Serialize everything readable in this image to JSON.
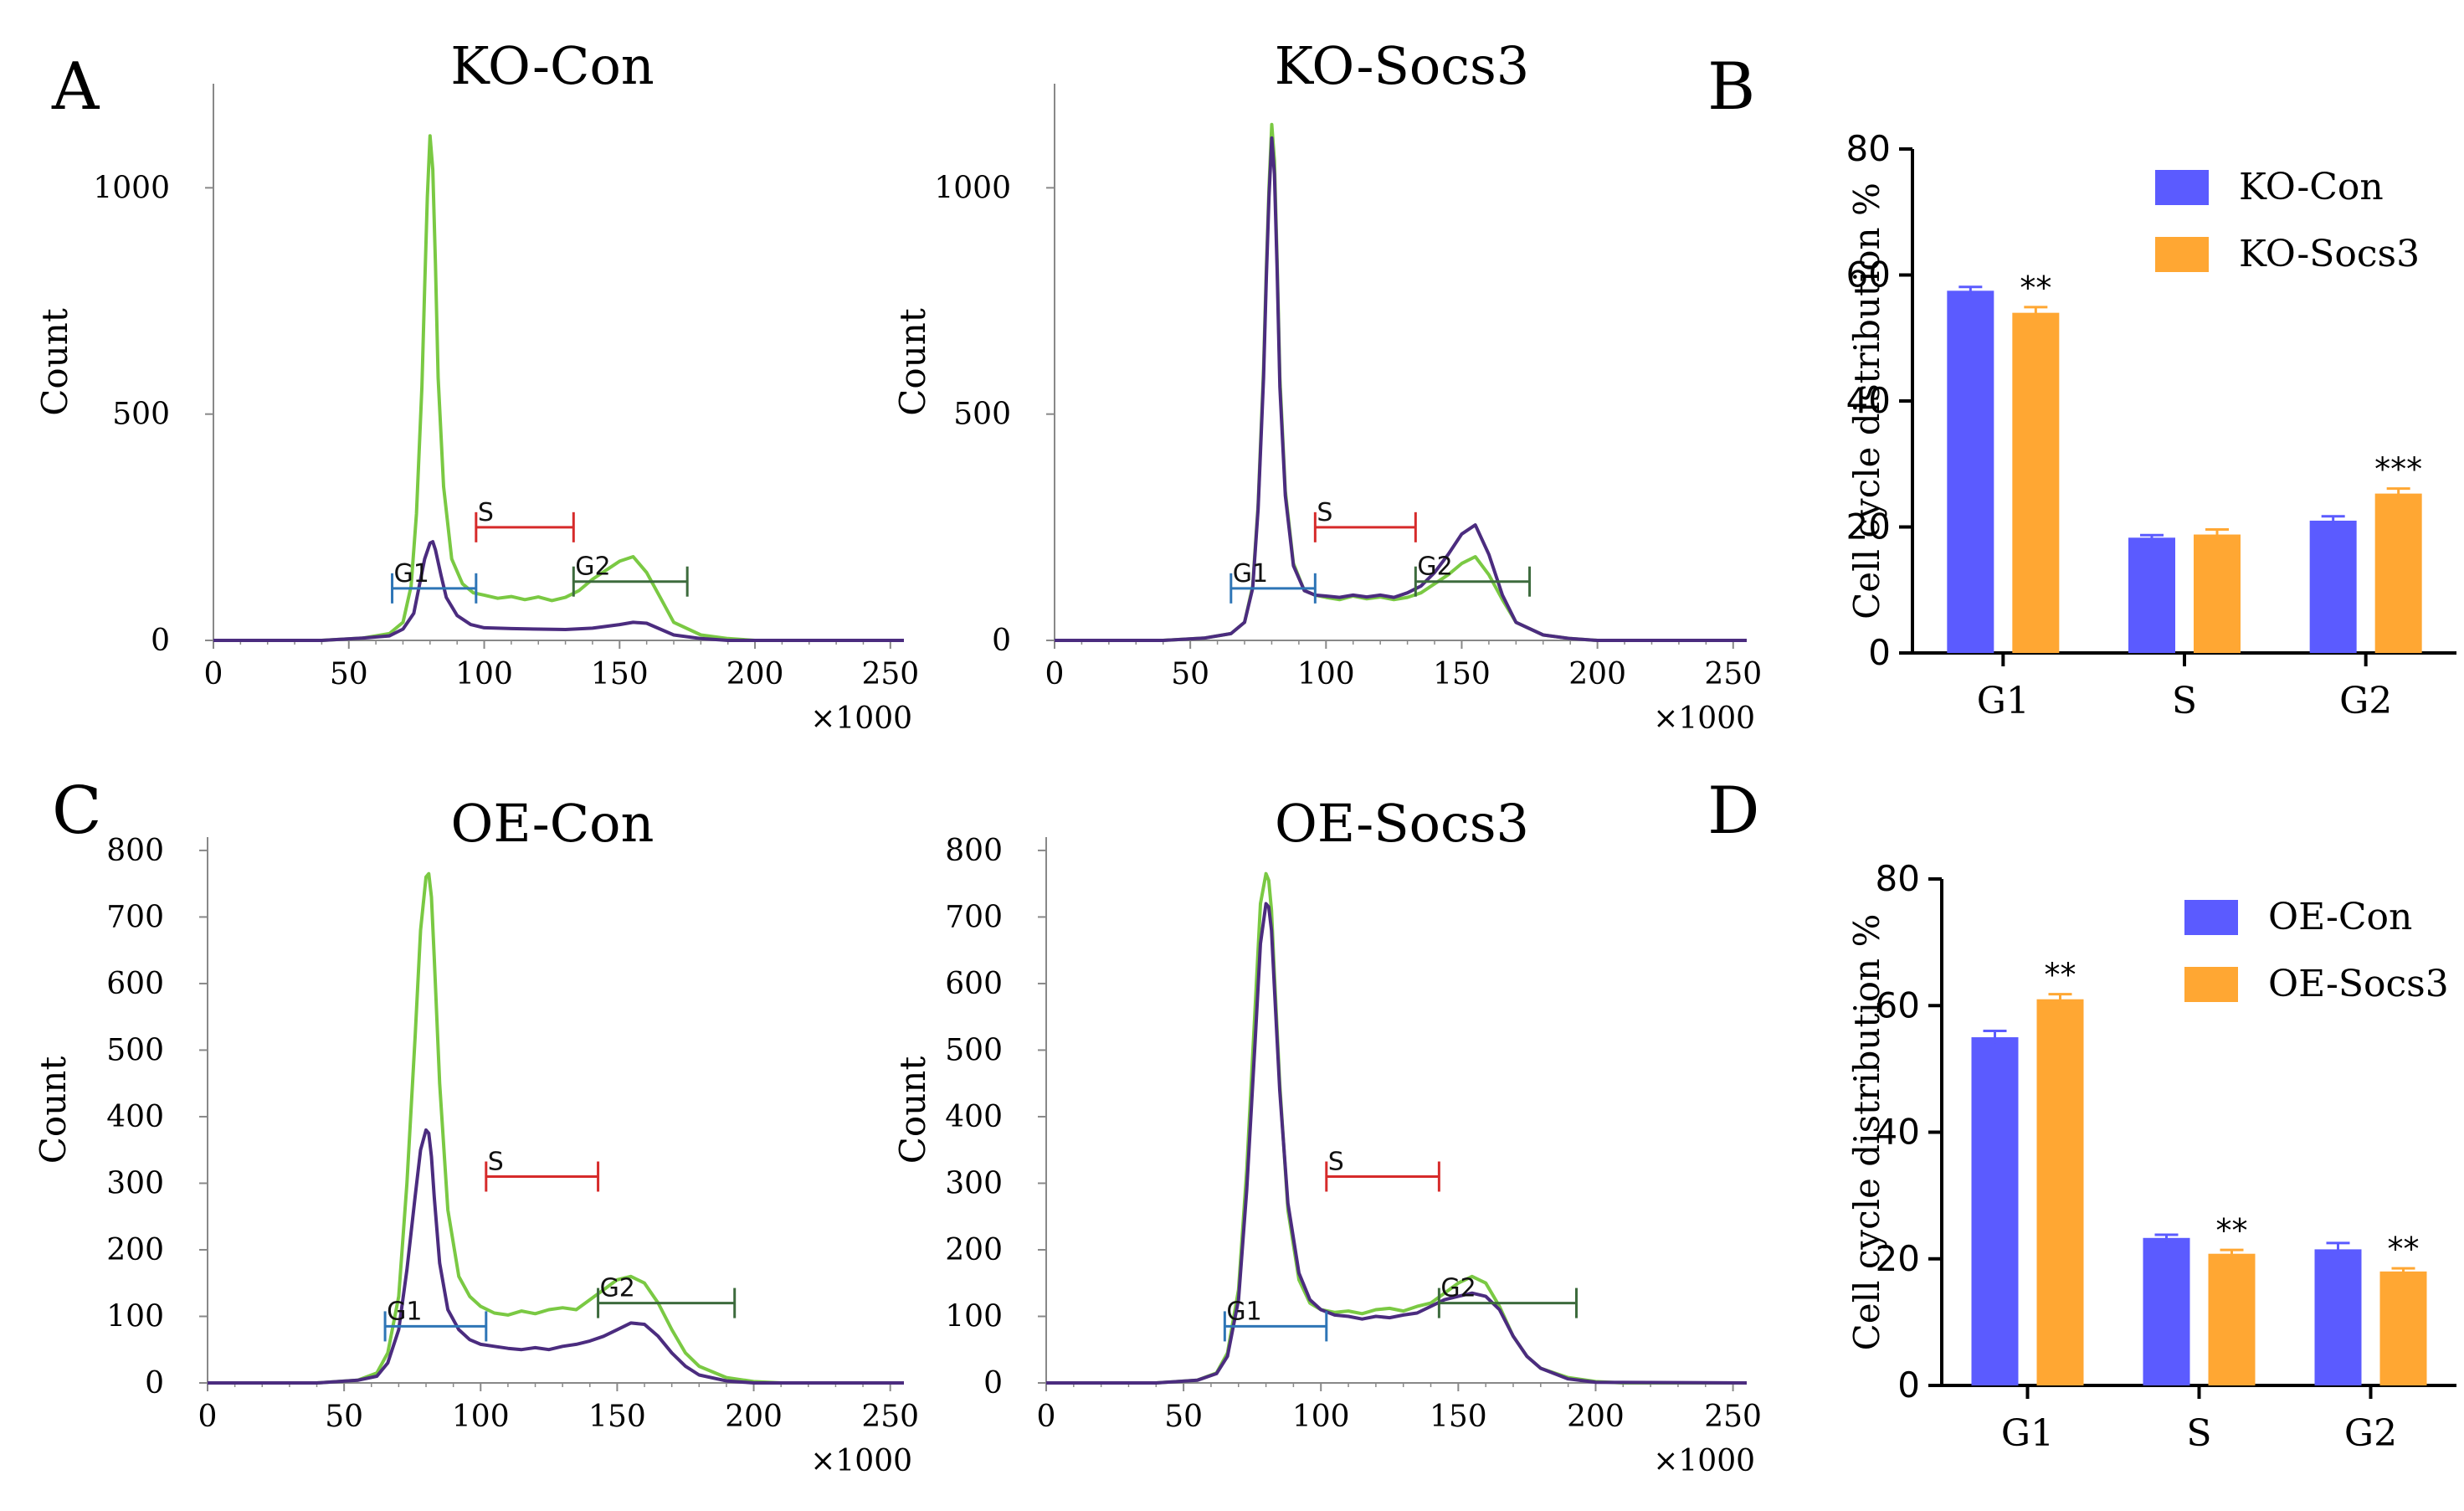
{
  "figure": {
    "panel_letters": [
      "A",
      "B",
      "C",
      "D"
    ],
    "colors": {
      "green": "#7ac943",
      "purple": "#4b2c7f",
      "blue_gate": "#2e75b6",
      "red_gate": "#d62b2b",
      "dkgreen_gate": "#3d6b3d",
      "bar_blue": "#5b5bff",
      "bar_orange": "#ffa733"
    }
  },
  "chart_data": [
    {
      "id": "histA1",
      "type": "line",
      "panel": "A",
      "title": "KO-Con",
      "xlabel": "",
      "x_multiplier_label": "×1000",
      "ylabel": "Count",
      "xlim": [
        0,
        255
      ],
      "ylim": [
        0,
        1230
      ],
      "xticks": [
        0,
        50,
        100,
        150,
        200,
        250
      ],
      "yticks": [
        0,
        500,
        1000
      ],
      "series": [
        {
          "name": "green",
          "color": "#7ac943",
          "x": [
            0,
            40,
            55,
            65,
            70,
            73,
            75,
            77,
            78,
            79,
            80,
            81,
            82,
            83,
            85,
            88,
            92,
            96,
            100,
            105,
            110,
            115,
            120,
            125,
            130,
            135,
            140,
            145,
            150,
            155,
            160,
            165,
            170,
            180,
            190,
            200,
            210,
            255
          ],
          "y": [
            0,
            0,
            5,
            15,
            40,
            120,
            280,
            560,
            780,
            980,
            1115,
            1040,
            830,
            580,
            340,
            180,
            125,
            105,
            100,
            93,
            97,
            90,
            96,
            88,
            95,
            110,
            135,
            155,
            175,
            185,
            150,
            95,
            40,
            12,
            4,
            0,
            0,
            0
          ]
        },
        {
          "name": "purple",
          "color": "#4b2c7f",
          "x": [
            0,
            40,
            55,
            65,
            70,
            74,
            76,
            78,
            80,
            81,
            82,
            84,
            86,
            90,
            95,
            100,
            110,
            120,
            130,
            140,
            150,
            155,
            160,
            165,
            170,
            180,
            190,
            200,
            255
          ],
          "y": [
            0,
            0,
            5,
            10,
            25,
            60,
            120,
            180,
            215,
            218,
            200,
            145,
            95,
            55,
            35,
            28,
            26,
            25,
            24,
            27,
            35,
            40,
            38,
            25,
            12,
            4,
            0,
            0,
            0
          ]
        }
      ],
      "gates": [
        {
          "label": "G1",
          "x1": 66,
          "x2": 97,
          "y": 115,
          "color": "#2e75b6"
        },
        {
          "label": "S",
          "x1": 97,
          "x2": 133,
          "y": 250,
          "color": "#d62b2b"
        },
        {
          "label": "G2",
          "x1": 133,
          "x2": 175,
          "y": 130,
          "color": "#3d6b3d"
        }
      ]
    },
    {
      "id": "histA2",
      "type": "line",
      "panel": "A",
      "title": "KO-Socs3",
      "xlabel": "",
      "x_multiplier_label": "×1000",
      "ylabel": "Count",
      "xlim": [
        0,
        255
      ],
      "ylim": [
        0,
        1230
      ],
      "xticks": [
        0,
        50,
        100,
        150,
        200,
        250
      ],
      "yticks": [
        0,
        500,
        1000
      ],
      "series": [
        {
          "name": "green",
          "color": "#7ac943",
          "x": [
            0,
            40,
            55,
            65,
            70,
            73,
            75,
            77,
            78,
            79,
            80,
            81,
            82,
            83,
            85,
            88,
            92,
            96,
            100,
            105,
            110,
            115,
            120,
            125,
            130,
            135,
            140,
            145,
            150,
            155,
            160,
            165,
            170,
            180,
            190,
            200,
            210,
            255
          ],
          "y": [
            0,
            0,
            5,
            15,
            40,
            120,
            300,
            600,
            820,
            1000,
            1140,
            1060,
            840,
            580,
            330,
            170,
            110,
            100,
            95,
            90,
            98,
            92,
            96,
            90,
            95,
            105,
            125,
            145,
            170,
            185,
            145,
            90,
            40,
            12,
            4,
            0,
            0,
            0
          ]
        },
        {
          "name": "purple",
          "color": "#4b2c7f",
          "x": [
            0,
            40,
            55,
            65,
            70,
            73,
            75,
            77,
            78,
            79,
            80,
            81,
            82,
            83,
            85,
            88,
            92,
            96,
            100,
            105,
            110,
            115,
            120,
            125,
            130,
            135,
            140,
            145,
            150,
            155,
            160,
            165,
            170,
            180,
            190,
            200,
            210,
            255
          ],
          "y": [
            0,
            0,
            5,
            15,
            40,
            115,
            290,
            580,
            800,
            980,
            1110,
            1030,
            820,
            560,
            320,
            165,
            110,
            100,
            98,
            95,
            100,
            96,
            100,
            95,
            105,
            120,
            150,
            190,
            235,
            255,
            190,
            100,
            40,
            12,
            4,
            0,
            0,
            0
          ]
        }
      ],
      "gates": [
        {
          "label": "G1",
          "x1": 65,
          "x2": 96,
          "y": 115,
          "color": "#2e75b6"
        },
        {
          "label": "S",
          "x1": 96,
          "x2": 133,
          "y": 250,
          "color": "#d62b2b"
        },
        {
          "label": "G2",
          "x1": 133,
          "x2": 175,
          "y": 130,
          "color": "#3d6b3d"
        }
      ]
    },
    {
      "id": "barB",
      "type": "bar",
      "panel": "B",
      "title": "",
      "xlabel": "",
      "ylabel": "Cell cycle distribution %",
      "ylim": [
        0,
        80
      ],
      "yticks": [
        0,
        20,
        40,
        60,
        80
      ],
      "categories": [
        "G1",
        "S",
        "G2"
      ],
      "series": [
        {
          "name": "KO-Con",
          "color": "#5b5bff",
          "values": [
            57.5,
            18.3,
            21.0
          ],
          "errors": [
            0.6,
            0.4,
            0.7
          ]
        },
        {
          "name": "KO-Socs3",
          "color": "#ffa733",
          "values": [
            54.0,
            18.8,
            25.3
          ],
          "errors": [
            0.9,
            0.8,
            0.8
          ]
        }
      ],
      "significance": [
        {
          "category": "G1",
          "series": "KO-Socs3",
          "label": "**"
        },
        {
          "category": "G2",
          "series": "KO-Socs3",
          "label": "***"
        }
      ]
    },
    {
      "id": "histC1",
      "type": "line",
      "panel": "C",
      "title": "OE-Con",
      "xlabel": "",
      "x_multiplier_label": "×1000",
      "ylabel": "Count",
      "xlim": [
        0,
        255
      ],
      "ylim": [
        0,
        820
      ],
      "xticks": [
        0,
        50,
        100,
        150,
        200,
        250
      ],
      "yticks": [
        0,
        100,
        200,
        300,
        400,
        500,
        600,
        700,
        800
      ],
      "series": [
        {
          "name": "green",
          "color": "#7ac943",
          "x": [
            0,
            40,
            55,
            62,
            66,
            70,
            73,
            76,
            78,
            80,
            81,
            82,
            83,
            85,
            88,
            92,
            96,
            100,
            105,
            110,
            115,
            120,
            125,
            130,
            135,
            140,
            145,
            150,
            155,
            160,
            165,
            170,
            175,
            180,
            190,
            200,
            210,
            255
          ],
          "y": [
            0,
            0,
            4,
            15,
            45,
            130,
            300,
            520,
            680,
            760,
            765,
            730,
            640,
            450,
            260,
            160,
            130,
            115,
            105,
            102,
            108,
            104,
            110,
            113,
            110,
            125,
            140,
            155,
            160,
            150,
            120,
            80,
            45,
            25,
            8,
            2,
            0,
            0
          ]
        },
        {
          "name": "purple",
          "color": "#4b2c7f",
          "x": [
            0,
            40,
            55,
            62,
            66,
            70,
            73,
            76,
            78,
            80,
            81,
            82,
            83,
            85,
            88,
            92,
            96,
            100,
            105,
            110,
            115,
            120,
            125,
            130,
            135,
            140,
            145,
            150,
            155,
            160,
            165,
            170,
            175,
            180,
            190,
            200,
            255
          ],
          "y": [
            0,
            0,
            4,
            10,
            30,
            80,
            170,
            280,
            350,
            380,
            375,
            340,
            280,
            180,
            110,
            80,
            65,
            58,
            55,
            52,
            50,
            53,
            50,
            55,
            58,
            63,
            70,
            80,
            90,
            88,
            70,
            45,
            25,
            12,
            3,
            0,
            0
          ]
        }
      ],
      "gates": [
        {
          "label": "G1",
          "x1": 65,
          "x2": 102,
          "y": 85,
          "color": "#2e75b6"
        },
        {
          "label": "S",
          "x1": 102,
          "x2": 143,
          "y": 310,
          "color": "#d62b2b"
        },
        {
          "label": "G2",
          "x1": 143,
          "x2": 193,
          "y": 120,
          "color": "#3d6b3d"
        }
      ]
    },
    {
      "id": "histC2",
      "type": "line",
      "panel": "C",
      "title": "OE-Socs3",
      "xlabel": "",
      "x_multiplier_label": "×1000",
      "ylabel": "Count",
      "xlim": [
        0,
        255
      ],
      "ylim": [
        0,
        820
      ],
      "xticks": [
        0,
        50,
        100,
        150,
        200,
        250
      ],
      "yticks": [
        0,
        100,
        200,
        300,
        400,
        500,
        600,
        700,
        800
      ],
      "series": [
        {
          "name": "green",
          "color": "#7ac943",
          "x": [
            0,
            40,
            55,
            62,
            66,
            70,
            73,
            76,
            78,
            80,
            81,
            82,
            83,
            85,
            88,
            92,
            96,
            100,
            105,
            110,
            115,
            120,
            125,
            130,
            135,
            140,
            145,
            150,
            155,
            160,
            165,
            170,
            175,
            180,
            190,
            200,
            210,
            255
          ],
          "y": [
            0,
            0,
            4,
            15,
            45,
            140,
            320,
            560,
            720,
            765,
            755,
            710,
            620,
            450,
            260,
            155,
            120,
            110,
            106,
            108,
            104,
            110,
            112,
            108,
            115,
            120,
            135,
            150,
            160,
            150,
            115,
            70,
            40,
            22,
            8,
            2,
            0,
            0
          ]
        },
        {
          "name": "purple",
          "color": "#4b2c7f",
          "x": [
            0,
            40,
            55,
            62,
            66,
            70,
            73,
            76,
            78,
            80,
            81,
            82,
            83,
            85,
            88,
            92,
            96,
            100,
            105,
            110,
            115,
            120,
            125,
            130,
            135,
            140,
            145,
            150,
            155,
            160,
            165,
            170,
            175,
            180,
            190,
            200,
            255
          ],
          "y": [
            0,
            0,
            4,
            14,
            40,
            125,
            290,
            510,
            660,
            720,
            715,
            680,
            600,
            440,
            270,
            165,
            125,
            110,
            102,
            100,
            96,
            100,
            98,
            102,
            105,
            115,
            125,
            130,
            135,
            130,
            110,
            70,
            40,
            22,
            6,
            1,
            0
          ]
        }
      ],
      "gates": [
        {
          "label": "G1",
          "x1": 65,
          "x2": 102,
          "y": 85,
          "color": "#2e75b6"
        },
        {
          "label": "S",
          "x1": 102,
          "x2": 143,
          "y": 310,
          "color": "#d62b2b"
        },
        {
          "label": "G2",
          "x1": 143,
          "x2": 193,
          "y": 120,
          "color": "#3d6b3d"
        }
      ]
    },
    {
      "id": "barD",
      "type": "bar",
      "panel": "D",
      "title": "",
      "xlabel": "",
      "ylabel": "Cell cycle distribution %",
      "ylim": [
        0,
        80
      ],
      "yticks": [
        0,
        20,
        40,
        60,
        80
      ],
      "categories": [
        "G1",
        "S",
        "G2"
      ],
      "series": [
        {
          "name": "OE-Con",
          "color": "#5b5bff",
          "values": [
            55.0,
            23.3,
            21.5
          ],
          "errors": [
            1.0,
            0.5,
            1.0
          ]
        },
        {
          "name": "OE-Socs3",
          "color": "#ffa733",
          "values": [
            61.0,
            20.8,
            18.0
          ],
          "errors": [
            0.8,
            0.6,
            0.5
          ]
        }
      ],
      "significance": [
        {
          "category": "G1",
          "series": "OE-Socs3",
          "label": "**"
        },
        {
          "category": "S",
          "series": "OE-Socs3",
          "label": "**"
        },
        {
          "category": "G2",
          "series": "OE-Socs3",
          "label": "**"
        }
      ]
    }
  ]
}
